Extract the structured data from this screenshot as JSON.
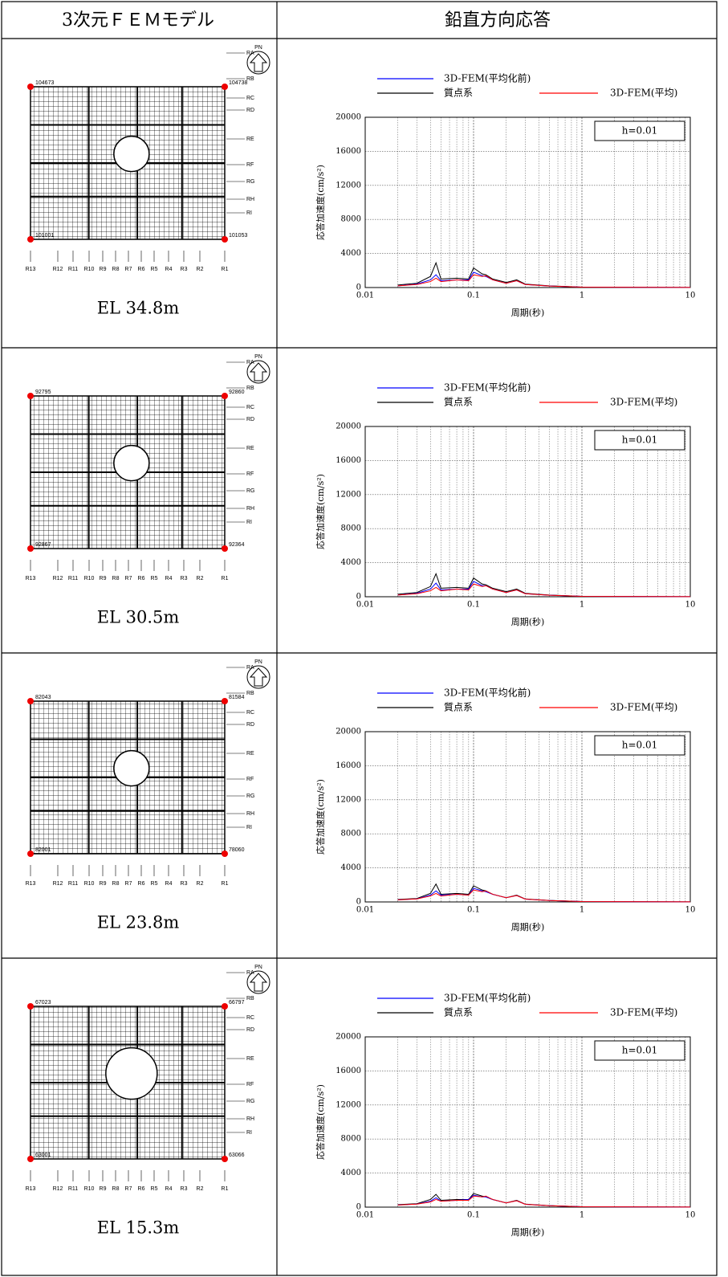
{
  "table": {
    "header": [
      "3次元ＦＥＭモデル",
      "鉛直方向応答"
    ],
    "north": "PN",
    "grid_rows": [
      "RA",
      "RB",
      "RC",
      "RD",
      "RE",
      "RF",
      "RG",
      "RH",
      "RI"
    ],
    "grid_cols": [
      "R13",
      "R12",
      "R11",
      "R10",
      "R9",
      "R8",
      "R7",
      "R6",
      "R5",
      "R4",
      "R3",
      "R2",
      "R1"
    ],
    "rows": [
      {
        "model": {
          "nodes": [
            "104673",
            "104738",
            "101001",
            "101053"
          ],
          "elevation": "EL 34.8m"
        },
        "chart": {
          "type": "line",
          "ylabel": "応答加速度(cm/s²)",
          "xlabel": "周期(秒)",
          "annotation": "h=0.01",
          "xlog": true,
          "grid": true,
          "xlim": [
            0.01,
            10
          ],
          "xticks": [
            0.01,
            0.1,
            1,
            10
          ],
          "ylim": [
            0,
            20000
          ],
          "yticks": [
            0,
            4000,
            8000,
            12000,
            16000,
            20000
          ],
          "x": [
            0.02,
            0.03,
            0.04,
            0.045,
            0.05,
            0.07,
            0.09,
            0.1,
            0.12,
            0.13,
            0.15,
            0.2,
            0.25,
            0.3,
            0.5,
            1,
            10
          ],
          "series": [
            {
              "name": "3D-FEM(平均化前)",
              "color": "#0000ff",
              "values": [
                200,
                400,
                900,
                1500,
                800,
                900,
                900,
                1800,
                1400,
                1300,
                900,
                500,
                800,
                350,
                180,
                50,
                10
              ]
            },
            {
              "name": "質点系",
              "color": "#000000",
              "values": [
                300,
                500,
                1300,
                2900,
                1000,
                1100,
                1000,
                2300,
                1600,
                1500,
                1000,
                600,
                900,
                400,
                200,
                50,
                10
              ]
            },
            {
              "name": "3D-FEM(平均)",
              "color": "#ff0000",
              "values": [
                200,
                350,
                700,
                1100,
                700,
                900,
                800,
                1500,
                1300,
                1400,
                900,
                500,
                800,
                350,
                180,
                50,
                10
              ]
            }
          ]
        }
      },
      {
        "model": {
          "nodes": [
            "92795",
            "92860",
            "92867",
            "92364"
          ],
          "elevation": "EL 30.5m"
        },
        "chart": {
          "type": "line",
          "ylabel": "応答加速度(cm/s²)",
          "xlabel": "周期(秒)",
          "annotation": "h=0.01",
          "xlog": true,
          "grid": true,
          "xlim": [
            0.01,
            10
          ],
          "xticks": [
            0.01,
            0.1,
            1,
            10
          ],
          "ylim": [
            0,
            20000
          ],
          "yticks": [
            0,
            4000,
            8000,
            12000,
            16000,
            20000
          ],
          "x": [
            0.02,
            0.03,
            0.04,
            0.045,
            0.05,
            0.07,
            0.09,
            0.1,
            0.12,
            0.13,
            0.15,
            0.2,
            0.25,
            0.3,
            0.5,
            1,
            10
          ],
          "series": [
            {
              "name": "3D-FEM(平均化前)",
              "color": "#0000ff",
              "values": [
                200,
                400,
                900,
                1600,
                800,
                900,
                900,
                1800,
                1300,
                1300,
                900,
                500,
                800,
                350,
                180,
                50,
                10
              ]
            },
            {
              "name": "質点系",
              "color": "#000000",
              "values": [
                300,
                500,
                1200,
                2700,
                1000,
                1100,
                1000,
                2200,
                1500,
                1400,
                1000,
                600,
                900,
                400,
                200,
                50,
                10
              ]
            },
            {
              "name": "3D-FEM(平均)",
              "color": "#ff0000",
              "values": [
                200,
                350,
                700,
                1100,
                700,
                900,
                800,
                1500,
                1200,
                1300,
                900,
                500,
                800,
                350,
                180,
                50,
                10
              ]
            }
          ]
        }
      },
      {
        "model": {
          "nodes": [
            "82043",
            "81584",
            "82001",
            "78060"
          ],
          "elevation": "EL 23.8m"
        },
        "chart": {
          "type": "line",
          "ylabel": "応答加速度(cm/s²)",
          "xlabel": "周期(秒)",
          "annotation": "h=0.01",
          "xlog": true,
          "grid": true,
          "xlim": [
            0.01,
            10
          ],
          "xticks": [
            0.01,
            0.1,
            1,
            10
          ],
          "ylim": [
            0,
            20000
          ],
          "yticks": [
            0,
            4000,
            8000,
            12000,
            16000,
            20000
          ],
          "x": [
            0.02,
            0.03,
            0.04,
            0.045,
            0.05,
            0.07,
            0.09,
            0.1,
            0.12,
            0.13,
            0.15,
            0.2,
            0.25,
            0.3,
            0.5,
            1,
            10
          ],
          "series": [
            {
              "name": "3D-FEM(平均化前)",
              "color": "#0000ff",
              "values": [
                250,
                350,
                800,
                1300,
                800,
                900,
                800,
                1600,
                1300,
                1200,
                900,
                500,
                750,
                330,
                170,
                50,
                10
              ]
            },
            {
              "name": "質点系",
              "color": "#000000",
              "values": [
                300,
                400,
                1000,
                2100,
                900,
                1000,
                900,
                1900,
                1400,
                1300,
                900,
                500,
                800,
                350,
                180,
                50,
                10
              ]
            },
            {
              "name": "3D-FEM(平均)",
              "color": "#ff0000",
              "values": [
                250,
                350,
                700,
                1000,
                700,
                900,
                800,
                1400,
                1200,
                1300,
                900,
                500,
                750,
                330,
                170,
                50,
                10
              ]
            }
          ]
        }
      },
      {
        "model": {
          "nodes": [
            "67023",
            "66797",
            "63001",
            "63066"
          ],
          "elevation": "EL 15.3m"
        },
        "chart": {
          "type": "line",
          "ylabel": "応答加速度(cm/s²)",
          "xlabel": "周期(秒)",
          "annotation": "h=0.01",
          "xlog": true,
          "grid": true,
          "xlim": [
            0.01,
            10
          ],
          "xticks": [
            0.01,
            0.1,
            1,
            10
          ],
          "ylim": [
            0,
            20000
          ],
          "yticks": [
            0,
            4000,
            8000,
            12000,
            16000,
            20000
          ],
          "x": [
            0.02,
            0.03,
            0.04,
            0.045,
            0.05,
            0.07,
            0.09,
            0.1,
            0.12,
            0.13,
            0.15,
            0.2,
            0.25,
            0.3,
            0.5,
            1,
            10
          ],
          "series": [
            {
              "name": "3D-FEM(平均化前)",
              "color": "#0000ff",
              "values": [
                250,
                350,
                700,
                1100,
                700,
                800,
                900,
                1400,
                1200,
                1200,
                900,
                500,
                750,
                330,
                170,
                50,
                10
              ]
            },
            {
              "name": "質点系",
              "color": "#000000",
              "values": [
                300,
                400,
                900,
                1500,
                800,
                900,
                900,
                1600,
                1300,
                1200,
                900,
                500,
                800,
                350,
                180,
                50,
                10
              ]
            },
            {
              "name": "3D-FEM(平均)",
              "color": "#ff0000",
              "values": [
                250,
                350,
                600,
                900,
                700,
                800,
                800,
                1300,
                1200,
                1300,
                900,
                500,
                750,
                330,
                170,
                50,
                10
              ]
            }
          ]
        }
      }
    ]
  }
}
